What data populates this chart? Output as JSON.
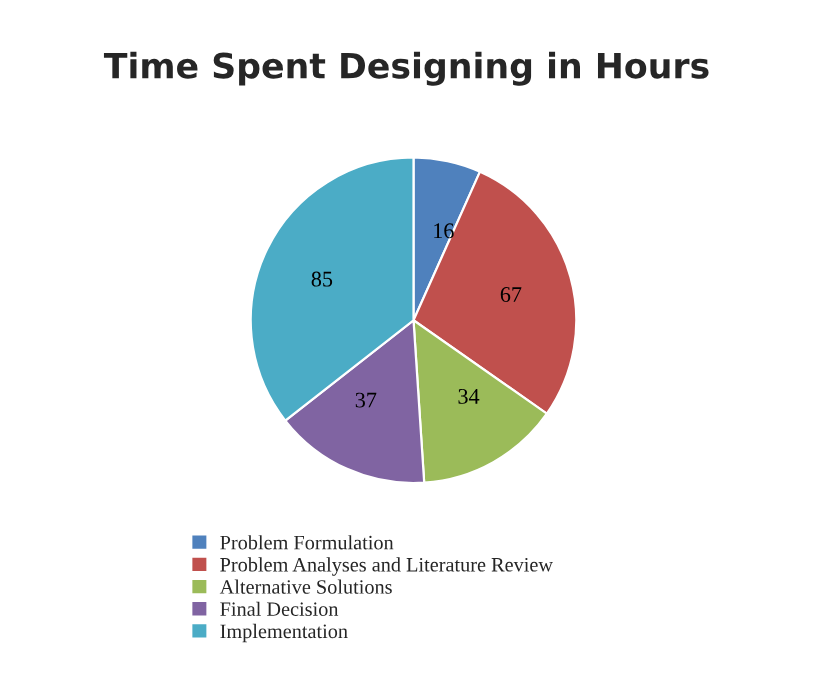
{
  "chart_data": {
    "type": "pie",
    "title": "Time Spent Designing in Hours",
    "categories": [
      "Problem Formulation",
      "Problem Analyses and Literature Review",
      "Alternative Solutions",
      "Final Decision",
      "Implementation"
    ],
    "values": [
      16,
      67,
      34,
      37,
      85
    ],
    "colors": [
      "#4f81bd",
      "#c0504d",
      "#9bbb59",
      "#8064a2",
      "#4bacc6"
    ],
    "data_labels": true,
    "legend": "bottom"
  }
}
